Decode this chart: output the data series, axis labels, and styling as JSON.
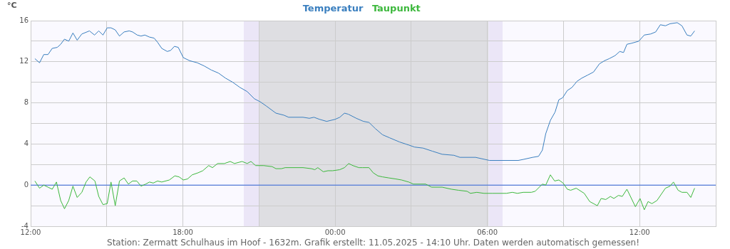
{
  "chart_data": {
    "type": "line",
    "ylabel": "°C",
    "legend": "top",
    "grid": true,
    "marker": "none",
    "line_style": "solid",
    "xlim": [
      "2025-05-10T12:00",
      "2025-05-11T15:00"
    ],
    "xticks": [
      {
        "value": "2025-05-10T12:00",
        "label": "12:00"
      },
      {
        "value": "2025-05-10T15:00",
        "label": null
      },
      {
        "value": "2025-05-10T18:00",
        "label": "18:00"
      },
      {
        "value": "2025-05-10T21:00",
        "label": null
      },
      {
        "value": "2025-05-11T00:00",
        "label": "00:00"
      },
      {
        "value": "2025-05-11T03:00",
        "label": null
      },
      {
        "value": "2025-05-11T06:00",
        "label": "06:00"
      },
      {
        "value": "2025-05-11T09:00",
        "label": null
      },
      {
        "value": "2025-05-11T12:00",
        "label": "12:00"
      },
      {
        "value": "2025-05-11T15:00",
        "label": null
      }
    ],
    "ylim": [
      -4,
      16
    ],
    "yticks": [
      -4,
      {
        "value": -2,
        "label": null
      },
      0,
      {
        "value": 2,
        "label": null
      },
      4,
      {
        "value": 6,
        "label": null
      },
      8,
      {
        "value": 10,
        "label": null
      },
      12,
      {
        "value": 14,
        "label": null
      },
      16
    ],
    "bands": [
      {
        "axis": "x",
        "from": "2025-05-10T20:24",
        "to": "2025-05-10T21:00",
        "color": "#ebe6f7"
      },
      {
        "axis": "x",
        "from": "2025-05-10T21:00",
        "to": "2025-05-11T06:03",
        "color": "#dedee2"
      },
      {
        "axis": "x",
        "from": "2025-05-11T06:03",
        "to": "2025-05-11T06:36",
        "color": "#ebe6f7"
      }
    ],
    "ref_lines": [
      {
        "axis": "y",
        "value": 0,
        "color": "#3366dd"
      }
    ],
    "series": [
      {
        "name": "Temperatur",
        "color": "#3a7fbf",
        "x": [
          "2025-05-10T12:10",
          "2025-05-10T12:21",
          "2025-05-10T12:31",
          "2025-05-10T12:41",
          "2025-05-10T12:51",
          "2025-05-10T13:03",
          "2025-05-10T13:11",
          "2025-05-10T13:20",
          "2025-05-10T13:30",
          "2025-05-10T13:40",
          "2025-05-10T13:50",
          "2025-05-10T14:01",
          "2025-05-10T14:19",
          "2025-05-10T14:31",
          "2025-05-10T14:41",
          "2025-05-10T14:51",
          "2025-05-10T15:01",
          "2025-05-10T15:10",
          "2025-05-10T15:20",
          "2025-05-10T15:30",
          "2025-05-10T15:41",
          "2025-05-10T15:53",
          "2025-05-10T16:01",
          "2025-05-10T16:12",
          "2025-05-10T16:21",
          "2025-05-10T16:30",
          "2025-05-10T16:41",
          "2025-05-10T16:52",
          "2025-05-10T17:00",
          "2025-05-10T17:10",
          "2025-05-10T17:23",
          "2025-05-10T17:31",
          "2025-05-10T17:40",
          "2025-05-10T17:49",
          "2025-05-10T18:01",
          "2025-05-10T18:16",
          "2025-05-10T18:34",
          "2025-05-10T18:50",
          "2025-05-10T19:07",
          "2025-05-10T19:24",
          "2025-05-10T19:41",
          "2025-05-10T19:58",
          "2025-05-10T20:15",
          "2025-05-10T20:32",
          "2025-05-10T20:49",
          "2025-05-10T21:03",
          "2025-05-10T21:17",
          "2025-05-10T21:40",
          "2025-05-10T21:59",
          "2025-05-10T22:10",
          "2025-05-10T22:44",
          "2025-05-10T22:59",
          "2025-05-10T23:10",
          "2025-05-10T23:23",
          "2025-05-10T23:40",
          "2025-05-11T00:00",
          "2025-05-11T00:11",
          "2025-05-11T00:22",
          "2025-05-11T00:31",
          "2025-05-11T00:50",
          "2025-05-11T01:07",
          "2025-05-11T01:20",
          "2025-05-11T01:35",
          "2025-05-11T01:52",
          "2025-05-11T02:09",
          "2025-05-11T02:32",
          "2025-05-11T02:54",
          "2025-05-11T03:08",
          "2025-05-11T03:28",
          "2025-05-11T03:50",
          "2025-05-11T04:13",
          "2025-05-11T04:41",
          "2025-05-11T04:55",
          "2025-05-11T05:32",
          "2025-05-11T05:54",
          "2025-05-11T06:05",
          "2025-05-11T07:13",
          "2025-05-11T07:25",
          "2025-05-11T07:47",
          "2025-05-11T08:01",
          "2025-05-11T08:10",
          "2025-05-11T08:18",
          "2025-05-11T08:29",
          "2025-05-11T08:40",
          "2025-05-11T08:49",
          "2025-05-11T08:58",
          "2025-05-11T09:09",
          "2025-05-11T09:20",
          "2025-05-11T09:32",
          "2025-05-11T09:43",
          "2025-05-11T09:57",
          "2025-05-11T10:11",
          "2025-05-11T10:25",
          "2025-05-11T10:37",
          "2025-05-11T10:48",
          "2025-05-11T11:02",
          "2025-05-11T11:13",
          "2025-05-11T11:22",
          "2025-05-11T11:30",
          "2025-05-11T11:41",
          "2025-05-11T11:58",
          "2025-05-11T12:11",
          "2025-05-11T12:26",
          "2025-05-11T12:38",
          "2025-05-11T12:49",
          "2025-05-11T13:01",
          "2025-05-11T13:12",
          "2025-05-11T13:29",
          "2025-05-11T13:40",
          "2025-05-11T13:52",
          "2025-05-11T14:01",
          "2025-05-11T14:10"
        ],
        "values": [
          12.3,
          11.9,
          12.7,
          12.7,
          13.3,
          13.4,
          13.7,
          14.2,
          14.0,
          14.8,
          14.1,
          14.7,
          15.0,
          14.6,
          15.0,
          14.6,
          15.3,
          15.3,
          15.1,
          14.5,
          14.9,
          15.0,
          14.9,
          14.6,
          14.5,
          14.6,
          14.4,
          14.3,
          13.9,
          13.3,
          13.0,
          13.1,
          13.5,
          13.4,
          12.4,
          12.1,
          11.9,
          11.6,
          11.2,
          10.9,
          10.4,
          10.0,
          9.5,
          9.1,
          8.4,
          8.1,
          7.7,
          7.0,
          6.8,
          6.6,
          6.6,
          6.5,
          6.6,
          6.4,
          6.2,
          6.4,
          6.6,
          7.0,
          6.9,
          6.5,
          6.2,
          6.1,
          5.5,
          4.9,
          4.6,
          4.2,
          3.9,
          3.7,
          3.6,
          3.3,
          3.0,
          2.9,
          2.7,
          2.7,
          2.5,
          2.4,
          2.4,
          2.5,
          2.7,
          2.8,
          3.4,
          5.0,
          6.3,
          7.1,
          8.3,
          8.5,
          9.2,
          9.5,
          10.1,
          10.4,
          10.7,
          11.0,
          11.8,
          12.1,
          12.3,
          12.6,
          13.0,
          12.9,
          13.7,
          13.8,
          14.0,
          14.6,
          14.7,
          14.9,
          15.6,
          15.5,
          15.7,
          15.8,
          15.5,
          14.6,
          14.5,
          15.0
        ]
      },
      {
        "name": "Taupunkt",
        "color": "#3cb83c",
        "x": [
          "2025-05-10T12:10",
          "2025-05-10T12:21",
          "2025-05-10T12:31",
          "2025-05-10T12:41",
          "2025-05-10T12:51",
          "2025-05-10T13:01",
          "2025-05-10T13:11",
          "2025-05-10T13:20",
          "2025-05-10T13:30",
          "2025-05-10T13:40",
          "2025-05-10T13:50",
          "2025-05-10T14:01",
          "2025-05-10T14:11",
          "2025-05-10T14:20",
          "2025-05-10T14:32",
          "2025-05-10T14:41",
          "2025-05-10T14:51",
          "2025-05-10T15:01",
          "2025-05-10T15:10",
          "2025-05-10T15:20",
          "2025-05-10T15:30",
          "2025-05-10T15:41",
          "2025-05-10T15:51",
          "2025-05-10T16:01",
          "2025-05-10T16:11",
          "2025-05-10T16:21",
          "2025-05-10T16:32",
          "2025-05-10T16:41",
          "2025-05-10T16:50",
          "2025-05-10T17:00",
          "2025-05-10T17:10",
          "2025-05-10T17:28",
          "2025-05-10T17:41",
          "2025-05-10T17:51",
          "2025-05-10T18:01",
          "2025-05-10T18:11",
          "2025-05-10T18:22",
          "2025-05-10T18:36",
          "2025-05-10T18:47",
          "2025-05-10T19:01",
          "2025-05-10T19:10",
          "2025-05-10T19:22",
          "2025-05-10T19:38",
          "2025-05-10T19:52",
          "2025-05-10T20:02",
          "2025-05-10T20:20",
          "2025-05-10T20:32",
          "2025-05-10T20:41",
          "2025-05-10T20:52",
          "2025-05-10T21:11",
          "2025-05-10T21:31",
          "2025-05-10T21:40",
          "2025-05-10T21:53",
          "2025-05-10T22:02",
          "2025-05-10T22:44",
          "2025-05-10T23:04",
          "2025-05-10T23:12",
          "2025-05-10T23:19",
          "2025-05-10T23:32",
          "2025-05-10T23:43",
          "2025-05-10T23:54",
          "2025-05-11T00:11",
          "2025-05-11T00:22",
          "2025-05-11T00:32",
          "2025-05-11T00:42",
          "2025-05-11T00:56",
          "2025-05-11T01:05",
          "2025-05-11T01:20",
          "2025-05-11T01:30",
          "2025-05-11T01:41",
          "2025-05-11T01:52",
          "2025-05-11T02:07",
          "2025-05-11T02:23",
          "2025-05-11T02:37",
          "2025-05-11T02:54",
          "2025-05-11T03:05",
          "2025-05-11T03:22",
          "2025-05-11T03:34",
          "2025-05-11T03:48",
          "2025-05-11T04:13",
          "2025-05-11T04:35",
          "2025-05-11T04:52",
          "2025-05-11T05:12",
          "2025-05-11T05:20",
          "2025-05-11T05:35",
          "2025-05-11T05:52",
          "2025-05-11T06:11",
          "2025-05-11T06:45",
          "2025-05-11T06:59",
          "2025-05-11T07:11",
          "2025-05-11T07:25",
          "2025-05-11T07:44",
          "2025-05-11T07:53",
          "2025-05-11T08:10",
          "2025-05-11T08:18",
          "2025-05-11T08:29",
          "2025-05-11T08:39",
          "2025-05-11T08:49",
          "2025-05-11T08:59",
          "2025-05-11T09:09",
          "2025-05-11T09:17",
          "2025-05-11T09:30",
          "2025-05-11T09:49",
          "2025-05-11T10:02",
          "2025-05-11T10:20",
          "2025-05-11T10:29",
          "2025-05-11T10:40",
          "2025-05-11T10:51",
          "2025-05-11T10:59",
          "2025-05-11T11:10",
          "2025-05-11T11:19",
          "2025-05-11T11:30",
          "2025-05-11T11:50",
          "2025-05-11T12:01",
          "2025-05-11T12:11",
          "2025-05-11T12:20",
          "2025-05-11T12:29",
          "2025-05-11T12:41",
          "2025-05-11T13:01",
          "2025-05-11T13:12",
          "2025-05-11T13:20",
          "2025-05-11T13:31",
          "2025-05-11T13:40",
          "2025-05-11T13:52",
          "2025-05-11T14:01",
          "2025-05-11T14:10"
        ],
        "values": [
          0.4,
          -0.3,
          0.0,
          -0.2,
          -0.4,
          0.3,
          -1.5,
          -2.3,
          -1.5,
          -0.1,
          -1.2,
          -0.7,
          0.3,
          0.8,
          0.4,
          -1.1,
          -1.9,
          -1.8,
          0.3,
          -2.0,
          0.4,
          0.7,
          0.1,
          0.4,
          0.4,
          -0.1,
          0.1,
          0.3,
          0.2,
          0.4,
          0.3,
          0.5,
          0.9,
          0.8,
          0.5,
          0.6,
          1.0,
          1.2,
          1.4,
          1.9,
          1.7,
          2.1,
          2.1,
          2.3,
          2.1,
          2.3,
          2.1,
          2.3,
          1.9,
          1.9,
          1.8,
          1.6,
          1.6,
          1.7,
          1.7,
          1.6,
          1.5,
          1.7,
          1.3,
          1.4,
          1.4,
          1.5,
          1.7,
          2.1,
          1.9,
          1.7,
          1.7,
          1.7,
          1.2,
          0.9,
          0.8,
          0.7,
          0.6,
          0.5,
          0.3,
          0.1,
          0.1,
          0.1,
          -0.2,
          -0.2,
          -0.4,
          -0.5,
          -0.6,
          -0.8,
          -0.7,
          -0.8,
          -0.8,
          -0.8,
          -0.7,
          -0.8,
          -0.7,
          -0.7,
          -0.6,
          0.1,
          0.0,
          1.0,
          0.4,
          0.5,
          0.2,
          -0.4,
          -0.5,
          -0.3,
          -0.8,
          -1.6,
          -2.0,
          -1.3,
          -1.4,
          -1.1,
          -1.3,
          -1.0,
          -1.1,
          -0.4,
          -2.1,
          -1.3,
          -2.4,
          -1.6,
          -1.8,
          -1.5,
          -0.3,
          -0.1,
          0.3,
          -0.5,
          -0.7,
          -0.7,
          -1.2,
          -0.3
        ]
      }
    ],
    "annotations": [
      "Station: Zermatt Schulhaus im Hoof - 1632m. Grafik erstellt: 11.05.2025 - 14:10 Uhr. Daten werden automatisch gemessen!"
    ]
  }
}
